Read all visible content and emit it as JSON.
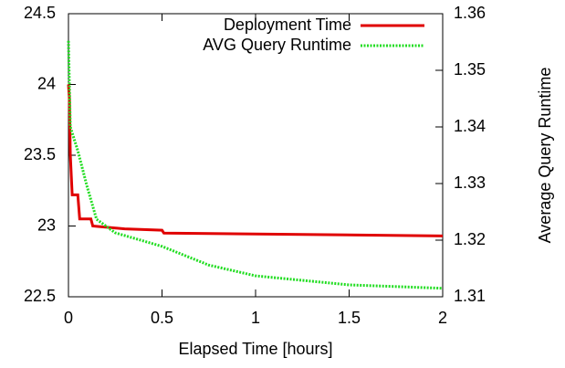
{
  "chart_data": {
    "type": "line",
    "xlabel": "Elapsed Time [hours]",
    "y2label": "Average Query Runtime",
    "xlim": [
      0,
      2
    ],
    "xticks": [
      0,
      0.5,
      1,
      1.5,
      2
    ],
    "ylim": [
      22.5,
      24.5
    ],
    "yticks": [
      22.5,
      23,
      23.5,
      24,
      24.5
    ],
    "y2lim": [
      1.31,
      1.36
    ],
    "y2ticks": [
      1.31,
      1.32,
      1.33,
      1.34,
      1.35,
      1.36
    ],
    "legend": "upper right",
    "series": [
      {
        "name": "Deployment Time",
        "color": "#e00000",
        "axis": "y",
        "x": [
          0,
          0.005,
          0.01,
          0.02,
          0.05,
          0.06,
          0.12,
          0.13,
          0.3,
          0.5,
          0.51,
          2
        ],
        "values": [
          24.0,
          23.9,
          23.5,
          23.22,
          23.22,
          23.05,
          23.05,
          23.0,
          22.98,
          22.97,
          22.95,
          22.93
        ]
      },
      {
        "name": "AVG Query Runtime",
        "color": "#22dd22",
        "axis": "y2",
        "x": [
          0,
          0.01,
          0.05,
          0.1,
          0.15,
          0.25,
          0.5,
          0.75,
          1.0,
          1.5,
          2
        ],
        "values": [
          1.3552,
          1.34,
          1.3358,
          1.3294,
          1.3237,
          1.3213,
          1.3189,
          1.3156,
          1.3137,
          1.3121,
          1.3115
        ]
      }
    ]
  }
}
